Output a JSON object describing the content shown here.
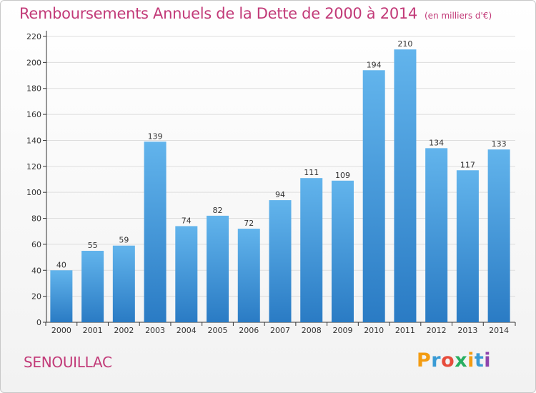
{
  "header": {
    "title": "Remboursements Annuels de la Dette de 2000 à 2014",
    "subtitle": "(en milliers d'€)"
  },
  "footer": {
    "commune": "SENOUILLAC",
    "brand": "Proxiti",
    "brand_colors": [
      "#f39c12",
      "#3a9bd5",
      "#e74c3c",
      "#27ae60",
      "#f39c12",
      "#3a9bd5",
      "#8e44ad"
    ]
  },
  "colors": {
    "accent": "#c23a78",
    "bar_top": "#62b4ec",
    "bar_bottom": "#2a7bc4",
    "axis": "#333333",
    "grid": "#dddddd"
  },
  "chart_data": {
    "type": "bar",
    "title": "Remboursements Annuels de la Dette de 2000 à 2014",
    "subtitle": "(en milliers d'€)",
    "categories": [
      "2000",
      "2001",
      "2002",
      "2003",
      "2004",
      "2005",
      "2006",
      "2007",
      "2008",
      "2009",
      "2010",
      "2011",
      "2012",
      "2013",
      "2014"
    ],
    "values": [
      40,
      55,
      59,
      139,
      74,
      82,
      72,
      94,
      111,
      109,
      194,
      210,
      134,
      117,
      133
    ],
    "ylim": [
      0,
      220
    ],
    "yticks": [
      0,
      20,
      40,
      60,
      80,
      100,
      120,
      140,
      160,
      180,
      200,
      220
    ],
    "xlabel": "",
    "ylabel": "",
    "grid": true,
    "data_labels": true
  }
}
